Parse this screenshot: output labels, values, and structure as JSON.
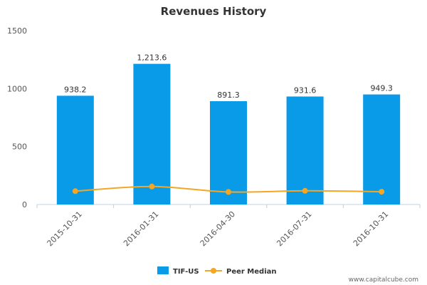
{
  "chart_data": {
    "type": "bar",
    "title": "Revenues History",
    "categories": [
      "2015-10-31",
      "2016-01-31",
      "2016-04-30",
      "2016-07-31",
      "2016-10-31"
    ],
    "series": [
      {
        "name": "TIF-US",
        "type": "bar",
        "values": [
          938.2,
          1213.6,
          891.3,
          931.6,
          949.3
        ],
        "labels": [
          "938.2",
          "1,213.6",
          "891.3",
          "931.6",
          "949.3"
        ],
        "color": "#0a9be8"
      },
      {
        "name": "Peer Median",
        "type": "line",
        "values": [
          115,
          155,
          108,
          118,
          110
        ],
        "color": "#f5a623"
      }
    ],
    "yticks": [
      "0",
      "500",
      "1000",
      "1500"
    ],
    "ylim": [
      0,
      1500
    ],
    "grid": false,
    "legend_position": "bottom-center"
  },
  "credit": "www.capitalcube.com"
}
